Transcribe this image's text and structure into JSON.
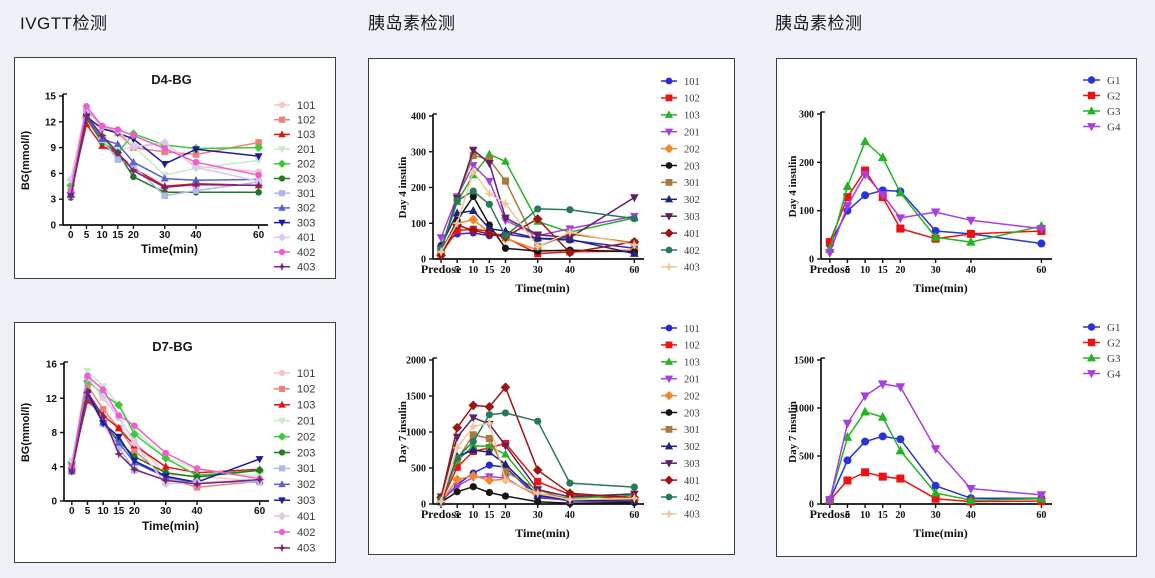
{
  "page": {
    "headers": [
      "IVGTT检测",
      "胰岛素检测",
      "胰岛素检测"
    ],
    "background_color": "#edf1f7",
    "panel_border_color": "#3b3f45"
  },
  "chart_data": [
    {
      "id": "d4-bg",
      "type": "line",
      "title": "D4-BG",
      "ylabel": "BG(mmol/l)",
      "xlabel": "Time(min)",
      "categories": [
        "0",
        "5",
        "10",
        "15",
        "20",
        "30",
        "40",
        "60"
      ],
      "x_numeric": [
        0,
        5,
        10,
        15,
        20,
        30,
        40,
        60
      ],
      "ylim": [
        0,
        15
      ],
      "yticks": [
        0,
        3,
        6,
        9,
        12,
        15
      ],
      "legend_position": "right",
      "grid": false,
      "series": [
        {
          "name": "101",
          "color": "#f5c6c6",
          "marker": "circle",
          "values": [
            5.3,
            13.8,
            11.2,
            10.8,
            9.0,
            9.5,
            6.8,
            6.2
          ]
        },
        {
          "name": "102",
          "color": "#f0807a",
          "marker": "square",
          "values": [
            3.9,
            13.5,
            11.4,
            10.7,
            9.0,
            8.5,
            8.2,
            9.6
          ]
        },
        {
          "name": "103",
          "color": "#e5130d",
          "marker": "tri-up",
          "values": [
            3.8,
            11.7,
            9.2,
            8.3,
            6.6,
            4.5,
            4.8,
            4.6
          ]
        },
        {
          "name": "201",
          "color": "#c7eac7",
          "marker": "tri-down",
          "values": [
            4.5,
            12.6,
            10.4,
            8.6,
            9.2,
            5.8,
            6.6,
            7.5
          ]
        },
        {
          "name": "202",
          "color": "#3cca3c",
          "marker": "diamond",
          "values": [
            4.6,
            12.5,
            10.2,
            8.4,
            10.6,
            9.3,
            8.9,
            9.0
          ]
        },
        {
          "name": "203",
          "color": "#1e7a1e",
          "marker": "circle",
          "values": [
            3.2,
            12.4,
            9.6,
            8.4,
            5.6,
            3.8,
            3.8,
            3.8
          ]
        },
        {
          "name": "301",
          "color": "#b1b7eb",
          "marker": "square",
          "values": [
            3.4,
            13.0,
            9.9,
            7.6,
            6.9,
            3.4,
            4.0,
            5.0
          ]
        },
        {
          "name": "302",
          "color": "#5761d0",
          "marker": "tri-up",
          "values": [
            3.5,
            12.6,
            10.0,
            9.4,
            7.3,
            5.4,
            5.2,
            5.3
          ]
        },
        {
          "name": "303",
          "color": "#1b1ba0",
          "marker": "tri-down",
          "values": [
            3.5,
            12.6,
            11.2,
            10.7,
            10.0,
            7.1,
            8.8,
            8.0
          ]
        },
        {
          "name": "401",
          "color": "#dec9ec",
          "marker": "diamond",
          "values": [
            5.3,
            13.7,
            11.4,
            11.0,
            9.1,
            9.6,
            6.7,
            5.1
          ]
        },
        {
          "name": "402",
          "color": "#ee5fce",
          "marker": "circle",
          "values": [
            4.0,
            13.8,
            11.5,
            11.1,
            10.4,
            8.9,
            7.3,
            5.8
          ]
        },
        {
          "name": "403",
          "color": "#7c2378",
          "marker": "star",
          "values": [
            3.3,
            12.7,
            10.4,
            8.4,
            6.3,
            4.4,
            4.7,
            4.6
          ]
        }
      ]
    },
    {
      "id": "d7-bg",
      "type": "line",
      "title": "D7-BG",
      "ylabel": "BG(mmol/l)",
      "xlabel": "Time(min)",
      "categories": [
        "0",
        "5",
        "10",
        "15",
        "20",
        "30",
        "40",
        "60"
      ],
      "x_numeric": [
        0,
        5,
        10,
        15,
        20,
        30,
        40,
        60
      ],
      "ylim": [
        0,
        16
      ],
      "yticks": [
        0,
        4,
        8,
        12,
        16
      ],
      "legend_position": "right",
      "grid": false,
      "series": [
        {
          "name": "101",
          "color": "#f5c6c6",
          "marker": "circle",
          "values": [
            4.6,
            14.5,
            12.0,
            9.7,
            7.0,
            3.1,
            2.9,
            2.3
          ]
        },
        {
          "name": "102",
          "color": "#f0807a",
          "marker": "square",
          "values": [
            4.2,
            13.5,
            10.7,
            8.5,
            5.9,
            2.7,
            1.6,
            2.3
          ]
        },
        {
          "name": "103",
          "color": "#e5130d",
          "marker": "tri-up",
          "values": [
            4.1,
            11.7,
            10.0,
            8.5,
            6.5,
            4.0,
            3.3,
            3.7
          ]
        },
        {
          "name": "201",
          "color": "#c7eac7",
          "marker": "tri-down",
          "values": [
            4.6,
            15.2,
            13.4,
            11.2,
            8.3,
            5.1,
            3.7,
            2.9
          ]
        },
        {
          "name": "202",
          "color": "#3cca3c",
          "marker": "diamond",
          "values": [
            4.5,
            14.0,
            12.5,
            11.2,
            7.8,
            5.0,
            3.0,
            3.6
          ]
        },
        {
          "name": "203",
          "color": "#1e7a1e",
          "marker": "circle",
          "values": [
            4.5,
            12.8,
            9.2,
            7.0,
            5.2,
            3.3,
            2.8,
            3.6
          ]
        },
        {
          "name": "301",
          "color": "#b1b7eb",
          "marker": "square",
          "values": [
            3.4,
            12.5,
            9.0,
            6.3,
            3.6,
            2.5,
            2.2,
            2.2
          ]
        },
        {
          "name": "302",
          "color": "#5761d0",
          "marker": "tri-up",
          "values": [
            3.5,
            12.3,
            9.2,
            6.8,
            4.5,
            2.8,
            2.1,
            2.4
          ]
        },
        {
          "name": "303",
          "color": "#1b1ba0",
          "marker": "tri-down",
          "values": [
            3.5,
            12.6,
            9.1,
            7.5,
            4.7,
            2.9,
            2.2,
            4.9
          ]
        },
        {
          "name": "401",
          "color": "#dec9ec",
          "marker": "diamond",
          "values": [
            4.7,
            14.4,
            12.2,
            9.8,
            6.8,
            2.0,
            2.2,
            2.4
          ]
        },
        {
          "name": "402",
          "color": "#ee5fce",
          "marker": "circle",
          "values": [
            4.0,
            14.6,
            13.0,
            10.0,
            8.8,
            5.6,
            3.8,
            2.6
          ]
        },
        {
          "name": "403",
          "color": "#7c2378",
          "marker": "star",
          "values": [
            3.5,
            12.7,
            9.9,
            5.5,
            3.7,
            2.4,
            2.0,
            2.5
          ]
        }
      ]
    },
    {
      "id": "day4-insulin-individual",
      "type": "line",
      "title": "",
      "ylabel": "Day 4 insulin",
      "xlabel": "Time(min)",
      "categories": [
        "Predose",
        "5",
        "10",
        "15",
        "20",
        "30",
        "40",
        "60"
      ],
      "x_numeric": [
        0,
        5,
        10,
        15,
        20,
        30,
        40,
        60
      ],
      "ylim": [
        0,
        400
      ],
      "yticks": [
        0,
        100,
        200,
        300,
        400
      ],
      "legend_position": "right",
      "grid": false,
      "series": [
        {
          "name": "101",
          "color": "#2828d6",
          "marker": "circle",
          "values": [
            38,
            70,
            73,
            65,
            70,
            57,
            53,
            30
          ]
        },
        {
          "name": "102",
          "color": "#ec1414",
          "marker": "square",
          "values": [
            15,
            80,
            83,
            78,
            60,
            15,
            20,
            22
          ]
        },
        {
          "name": "103",
          "color": "#26b226",
          "marker": "tri-up",
          "values": [
            25,
            160,
            235,
            293,
            273,
            105,
            75,
            115
          ]
        },
        {
          "name": "201",
          "color": "#a53ee2",
          "marker": "tri-down",
          "values": [
            60,
            175,
            262,
            218,
            108,
            65,
            85,
            120
          ]
        },
        {
          "name": "202",
          "color": "#ef8729",
          "marker": "diamond",
          "values": [
            22,
            100,
            110,
            75,
            58,
            25,
            22,
            25
          ]
        },
        {
          "name": "203",
          "color": "#151515",
          "marker": "circle",
          "values": [
            20,
            108,
            175,
            95,
            30,
            22,
            25,
            20
          ]
        },
        {
          "name": "301",
          "color": "#a87a3c",
          "marker": "square",
          "values": [
            25,
            170,
            290,
            278,
            218,
            35,
            70,
            45
          ]
        },
        {
          "name": "302",
          "color": "#21217e",
          "marker": "tri-up",
          "values": [
            38,
            128,
            135,
            85,
            78,
            58,
            55,
            15
          ]
        },
        {
          "name": "303",
          "color": "#5e2162",
          "marker": "tri-down",
          "values": [
            28,
            170,
            305,
            268,
            115,
            68,
            60,
            172
          ]
        },
        {
          "name": "401",
          "color": "#9e1313",
          "marker": "diamond",
          "values": [
            10,
            95,
            80,
            70,
            62,
            112,
            18,
            48
          ]
        },
        {
          "name": "402",
          "color": "#277a58",
          "marker": "circle",
          "values": [
            30,
            163,
            190,
            153,
            65,
            140,
            138,
            113
          ]
        },
        {
          "name": "403",
          "color": "#eec79a",
          "marker": "star",
          "values": [
            20,
            100,
            245,
            183,
            155,
            35,
            75,
            40
          ]
        }
      ]
    },
    {
      "id": "day7-insulin-individual",
      "type": "line",
      "title": "",
      "ylabel": "Day 7 insulin",
      "xlabel": "Time(min)",
      "categories": [
        "Predose",
        "5",
        "10",
        "15",
        "20",
        "30",
        "40",
        "60"
      ],
      "x_numeric": [
        0,
        5,
        10,
        15,
        20,
        30,
        40,
        60
      ],
      "ylim": [
        0,
        2000
      ],
      "yticks": [
        0,
        500,
        1000,
        1500,
        2000
      ],
      "legend_position": "right",
      "grid": false,
      "series": [
        {
          "name": "101",
          "color": "#2828d6",
          "marker": "circle",
          "values": [
            30,
            270,
            430,
            540,
            510,
            90,
            50,
            40
          ]
        },
        {
          "name": "102",
          "color": "#ec1414",
          "marker": "square",
          "values": [
            30,
            510,
            730,
            780,
            840,
            310,
            130,
            60
          ]
        },
        {
          "name": "103",
          "color": "#26b226",
          "marker": "tri-up",
          "values": [
            40,
            600,
            810,
            800,
            690,
            150,
            80,
            120
          ]
        },
        {
          "name": "201",
          "color": "#a53ee2",
          "marker": "tri-down",
          "values": [
            40,
            250,
            370,
            380,
            360,
            110,
            40,
            30
          ]
        },
        {
          "name": "202",
          "color": "#ef8729",
          "marker": "diamond",
          "values": [
            30,
            340,
            390,
            330,
            340,
            120,
            60,
            50
          ]
        },
        {
          "name": "203",
          "color": "#151515",
          "marker": "circle",
          "values": [
            25,
            170,
            240,
            160,
            110,
            30,
            10,
            20
          ]
        },
        {
          "name": "301",
          "color": "#a87a3c",
          "marker": "square",
          "values": [
            30,
            620,
            960,
            910,
            450,
            200,
            50,
            60
          ]
        },
        {
          "name": "302",
          "color": "#21217e",
          "marker": "tri-up",
          "values": [
            30,
            660,
            750,
            720,
            550,
            120,
            50,
            40
          ]
        },
        {
          "name": "303",
          "color": "#5e2162",
          "marker": "tri-down",
          "values": [
            100,
            930,
            1200,
            1110,
            810,
            200,
            100,
            140
          ]
        },
        {
          "name": "401",
          "color": "#9e1313",
          "marker": "diamond",
          "values": [
            90,
            1060,
            1370,
            1350,
            1620,
            470,
            150,
            85
          ]
        },
        {
          "name": "402",
          "color": "#277a58",
          "marker": "circle",
          "values": [
            60,
            640,
            870,
            1240,
            1265,
            1150,
            290,
            235
          ]
        },
        {
          "name": "403",
          "color": "#eec79a",
          "marker": "star",
          "values": [
            35,
            780,
            1080,
            1120,
            330,
            150,
            60,
            80
          ]
        }
      ]
    },
    {
      "id": "day4-insulin-groups",
      "type": "line",
      "title": "",
      "ylabel": "Day 4 insulin",
      "xlabel": "Time(min)",
      "categories": [
        "Predose",
        "5",
        "10",
        "15",
        "20",
        "30",
        "40",
        "60"
      ],
      "x_numeric": [
        0,
        5,
        10,
        15,
        20,
        30,
        40,
        60
      ],
      "ylim": [
        0,
        300
      ],
      "yticks": [
        0,
        100,
        200,
        300
      ],
      "legend_position": "right",
      "grid": false,
      "series": [
        {
          "name": "G1",
          "color": "#2833d8",
          "marker": "circle",
          "values": [
            30,
            100,
            132,
            142,
            140,
            58,
            52,
            32
          ]
        },
        {
          "name": "G2",
          "color": "#ee1111",
          "marker": "square",
          "values": [
            35,
            128,
            183,
            128,
            63,
            42,
            52,
            58
          ]
        },
        {
          "name": "G3",
          "color": "#22b422",
          "marker": "tri-up",
          "values": [
            20,
            150,
            243,
            210,
            137,
            45,
            35,
            68
          ]
        },
        {
          "name": "G4",
          "color": "#a93ee0",
          "marker": "tri-down",
          "values": [
            13,
            110,
            175,
            133,
            85,
            97,
            80,
            63
          ]
        }
      ]
    },
    {
      "id": "day7-insulin-groups",
      "type": "line",
      "title": "",
      "ylabel": "Day 7 insulin",
      "xlabel": "Time(min)",
      "categories": [
        "Predose",
        "5",
        "10",
        "15",
        "20",
        "30",
        "40",
        "60"
      ],
      "x_numeric": [
        0,
        5,
        10,
        15,
        20,
        30,
        40,
        60
      ],
      "ylim": [
        0,
        1500
      ],
      "yticks": [
        0,
        500,
        1000,
        1500
      ],
      "legend_position": "right",
      "grid": false,
      "series": [
        {
          "name": "G1",
          "color": "#2833d8",
          "marker": "circle",
          "values": [
            40,
            455,
            650,
            705,
            675,
            190,
            60,
            60
          ]
        },
        {
          "name": "G2",
          "color": "#ee1111",
          "marker": "square",
          "values": [
            40,
            245,
            330,
            285,
            265,
            55,
            25,
            30
          ]
        },
        {
          "name": "G3",
          "color": "#22b422",
          "marker": "tri-up",
          "values": [
            45,
            695,
            960,
            905,
            555,
            115,
            40,
            55
          ]
        },
        {
          "name": "G4",
          "color": "#a93ee0",
          "marker": "tri-down",
          "values": [
            40,
            840,
            1125,
            1250,
            1220,
            575,
            160,
            95
          ]
        }
      ]
    }
  ]
}
